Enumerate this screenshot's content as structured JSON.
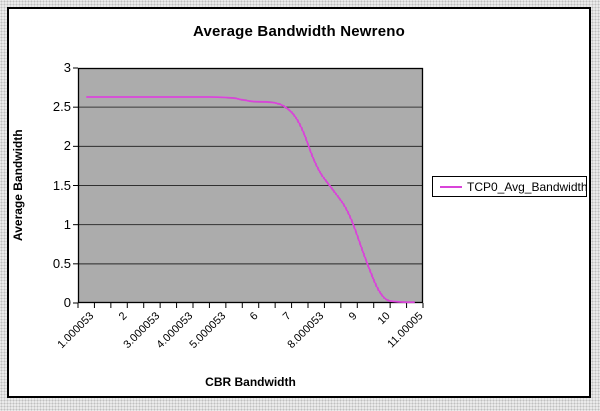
{
  "chart": {
    "title": "Average Bandwidth Newreno",
    "y_axis_title": "Average Bandwidth",
    "x_axis_title": "CBR Bandwidth",
    "legend_label": "TCP0_Avg_Bandwidth",
    "series_color": "#d944d9"
  },
  "chart_data": {
    "type": "line",
    "title": "Average Bandwidth Newreno",
    "xlabel": "CBR Bandwidth",
    "ylabel": "Average Bandwidth",
    "ylim": [
      0,
      3
    ],
    "y_ticks": [
      0,
      0.5,
      1,
      1.5,
      2,
      2.5,
      3
    ],
    "x": [
      1.000053,
      1.5,
      2,
      2.5,
      3.000053,
      3.5,
      4.000053,
      4.5,
      5.000053,
      5.5,
      6,
      6.5,
      7,
      7.5,
      8.000053,
      8.5,
      9,
      9.5,
      10,
      10.5,
      11.00005
    ],
    "x_tick_labels": [
      "1.000053",
      "2",
      "3.000053",
      "4.000053",
      "5.000053",
      "6",
      "7",
      "8.000053",
      "9",
      "10",
      "11.00005"
    ],
    "x_labeled_indices": [
      0,
      2,
      4,
      6,
      8,
      10,
      12,
      14,
      16,
      18,
      20
    ],
    "series": [
      {
        "name": "TCP0_Avg_Bandwidth",
        "color": "#d944d9",
        "values": [
          2.63,
          2.63,
          2.63,
          2.63,
          2.63,
          2.63,
          2.63,
          2.63,
          2.63,
          2.62,
          2.57,
          2.57,
          2.54,
          2.33,
          1.72,
          1.45,
          1.17,
          0.55,
          0.04,
          0.01,
          0.01
        ]
      }
    ],
    "legend_position": "right",
    "grid": "horizontal",
    "gridline_color": "#303030",
    "axis_color": "#000000"
  }
}
